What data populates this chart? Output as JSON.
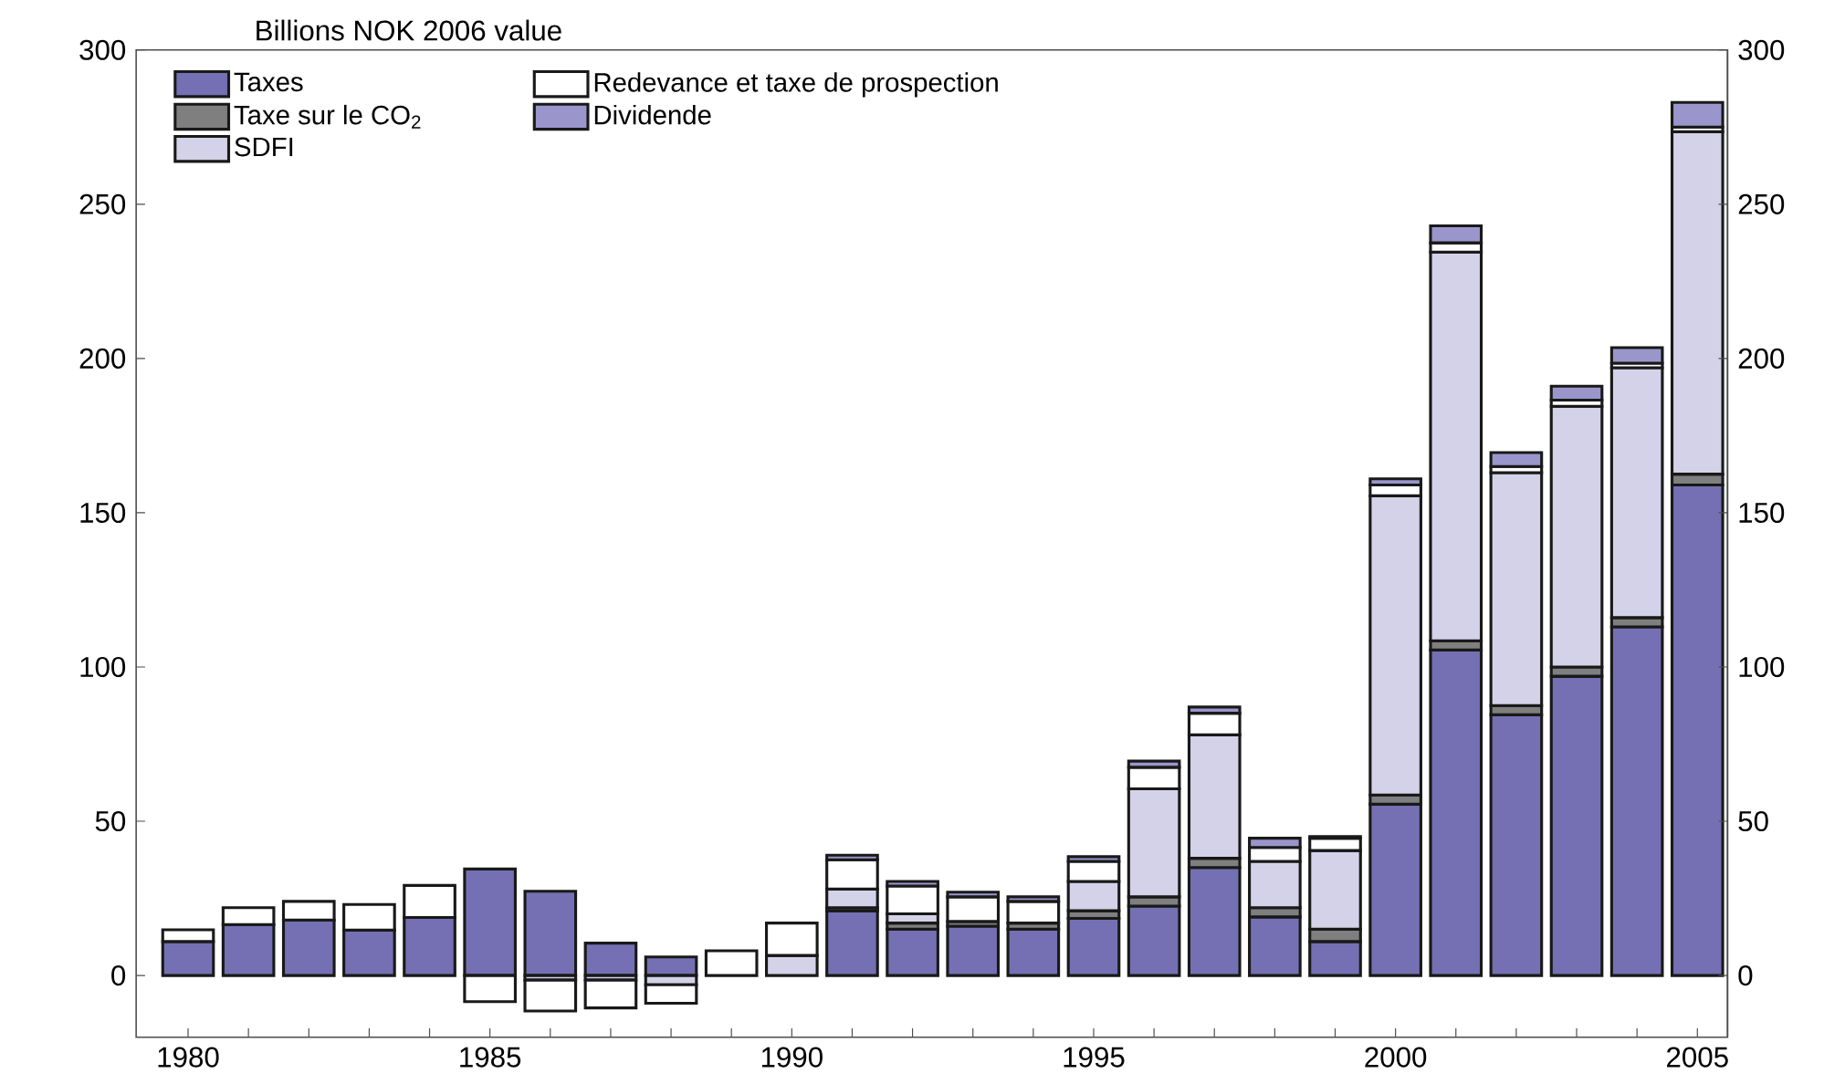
{
  "chart_data": {
    "type": "bar",
    "stacked": true,
    "subtitle": "Billions NOK 2006 value",
    "x": [
      1980,
      1981,
      1982,
      1983,
      1984,
      1985,
      1986,
      1987,
      1988,
      1989,
      1990,
      1991,
      1992,
      1993,
      1994,
      1995,
      1996,
      1997,
      1998,
      1999,
      2000,
      2001,
      2002,
      2003,
      2004,
      2005
    ],
    "series": [
      {
        "name": "Taxes",
        "color": "#7470b3",
        "values": [
          11,
          16.5,
          18,
          14.7,
          18.8,
          34.5,
          27.3,
          10.5,
          6,
          null,
          0,
          21,
          15,
          16,
          15,
          18.5,
          22.5,
          35,
          19,
          11,
          55.5,
          105.5,
          84.5,
          97,
          113,
          159
        ]
      },
      {
        "name": "Taxe sur le CO$_{2}$",
        "color": "#7f7f7f",
        "values": [
          0,
          0,
          0,
          0,
          0,
          0,
          0,
          0,
          0,
          0,
          0,
          1,
          2,
          1.5,
          2,
          2.5,
          3,
          3,
          3,
          4,
          3,
          3,
          3,
          3,
          3,
          3.5
        ]
      },
      {
        "name": "SDFI",
        "color": "#d3d2e8",
        "values": [
          0,
          0,
          0,
          0,
          0,
          0,
          -1.5,
          -1.5,
          -3,
          0,
          6.5,
          6,
          3,
          null,
          null,
          9.5,
          35,
          40,
          15,
          25.5,
          97,
          126,
          75.5,
          84.5,
          81,
          111
        ]
      },
      {
        "name": "Redevance et taxe de prospection",
        "color": "#ffffff",
        "values": [
          3.8,
          5.5,
          6,
          8.3,
          10.4,
          -8.5,
          -10,
          -9,
          -6,
          8,
          10.5,
          9.5,
          9,
          8,
          7,
          6.5,
          7,
          7,
          4.5,
          4,
          3.5,
          3,
          2,
          2,
          1.5,
          1.5
        ]
      },
      {
        "name": "Dividende",
        "color": "#9a96cc",
        "values": [
          0,
          0,
          0,
          0,
          0,
          0,
          0,
          0,
          0,
          0,
          0,
          1.5,
          1.5,
          1.5,
          1.5,
          1.5,
          2,
          2,
          3,
          0.5,
          2,
          5.5,
          4.5,
          4.5,
          5,
          8
        ]
      }
    ],
    "xlim": [
      1979.14,
      2005.5
    ],
    "xticks": [
      1980,
      {
        "value": 1981,
        "label": null
      },
      {
        "value": 1982,
        "label": null
      },
      {
        "value": 1983,
        "label": null
      },
      {
        "value": 1984,
        "label": null
      },
      1985,
      {
        "value": 1986,
        "label": null
      },
      {
        "value": 1987,
        "label": null
      },
      {
        "value": 1988,
        "label": null
      },
      {
        "value": 1989,
        "label": null
      },
      1990,
      {
        "value": 1991,
        "label": null
      },
      {
        "value": 1992,
        "label": null
      },
      {
        "value": 1993,
        "label": null
      },
      {
        "value": 1994,
        "label": null
      },
      1995,
      {
        "value": 1996,
        "label": null
      },
      {
        "value": 1997,
        "label": null
      },
      {
        "value": 1998,
        "label": null
      },
      {
        "value": 1999,
        "label": null
      },
      2000,
      {
        "value": 2001,
        "label": null
      },
      {
        "value": 2002,
        "label": null
      },
      {
        "value": 2003,
        "label": null
      },
      {
        "value": 2004,
        "label": null
      },
      2005
    ],
    "ylim": [
      -20,
      300
    ],
    "yticks": [
      0,
      50,
      100,
      150,
      200,
      250,
      300
    ],
    "y2lim": [
      -20,
      300
    ],
    "y2ticks": [
      0,
      50,
      100,
      150,
      200,
      250,
      300
    ],
    "legend": "top left"
  }
}
